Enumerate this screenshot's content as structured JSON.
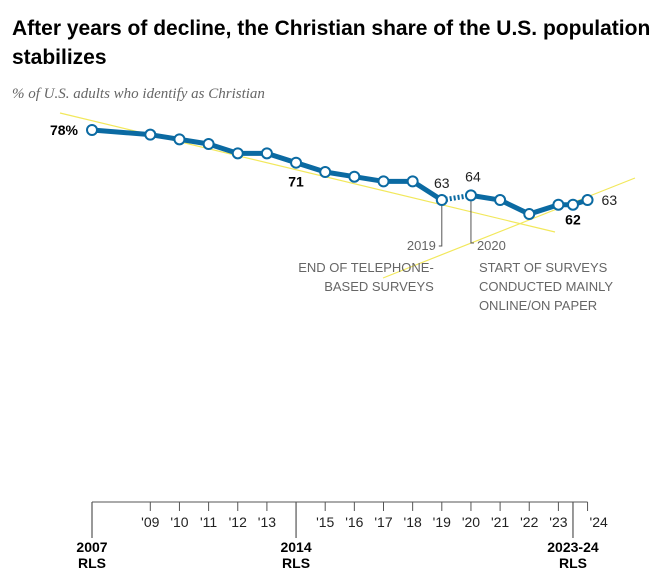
{
  "chart_data": {
    "type": "line",
    "title": "After years of decline, the Christian share of the U.S. population stabilizes",
    "subtitle": "% of U.S. adults who identify as Christian",
    "xlabel": "",
    "ylabel": "",
    "ylim": [
      55,
      80
    ],
    "grid": false,
    "series": [
      {
        "name": "Christian share",
        "color": "#0b6aa2",
        "points": [
          {
            "x": 2007,
            "y": 78,
            "label": "78%",
            "bold": true
          },
          {
            "x": 2009,
            "y": 77
          },
          {
            "x": 2010,
            "y": 76
          },
          {
            "x": 2011,
            "y": 75
          },
          {
            "x": 2012,
            "y": 73
          },
          {
            "x": 2013,
            "y": 73
          },
          {
            "x": 2014,
            "y": 71,
            "label": "71",
            "bold": true
          },
          {
            "x": 2015,
            "y": 69
          },
          {
            "x": 2016,
            "y": 68
          },
          {
            "x": 2017,
            "y": 67
          },
          {
            "x": 2018,
            "y": 67
          },
          {
            "x": 2019,
            "y": 63,
            "label": "63"
          },
          {
            "x": 2020,
            "y": 64,
            "label": "64"
          },
          {
            "x": 2021,
            "y": 63
          },
          {
            "x": 2022,
            "y": 60
          },
          {
            "x": 2023,
            "y": 62
          },
          {
            "x": 2023.5,
            "y": 62,
            "label": "62",
            "bold": true
          },
          {
            "x": 2024,
            "y": 63,
            "label": "63"
          }
        ]
      }
    ],
    "trend_color": "#f2e85c",
    "annotations": [
      {
        "year": "2019",
        "lines": [
          "END OF TELEPHONE-",
          "BASED SURVEYS"
        ]
      },
      {
        "year": "2020",
        "lines": [
          "START OF SURVEYS",
          "CONDUCTED MAINLY",
          "ONLINE/ON PAPER"
        ]
      }
    ],
    "minor_ticks": [
      {
        "x": 2009,
        "label": "'09"
      },
      {
        "x": 2010,
        "label": "'10"
      },
      {
        "x": 2011,
        "label": "'11"
      },
      {
        "x": 2012,
        "label": "'12"
      },
      {
        "x": 2013,
        "label": "'13"
      },
      {
        "x": 2015,
        "label": "'15"
      },
      {
        "x": 2016,
        "label": "'16"
      },
      {
        "x": 2017,
        "label": "'17"
      },
      {
        "x": 2018,
        "label": "'18"
      },
      {
        "x": 2019,
        "label": "'19"
      },
      {
        "x": 2020,
        "label": "'20"
      },
      {
        "x": 2021,
        "label": "'21"
      },
      {
        "x": 2022,
        "label": "'22"
      },
      {
        "x": 2023,
        "label": "'23"
      },
      {
        "x": 2024,
        "label": "'24"
      }
    ],
    "major_ticks": [
      {
        "x": 2007,
        "label": [
          "2007",
          "RLS"
        ]
      },
      {
        "x": 2014,
        "label": [
          "2014",
          "RLS"
        ]
      },
      {
        "x": 2023.5,
        "label": [
          "2023-24",
          "RLS"
        ]
      }
    ]
  }
}
